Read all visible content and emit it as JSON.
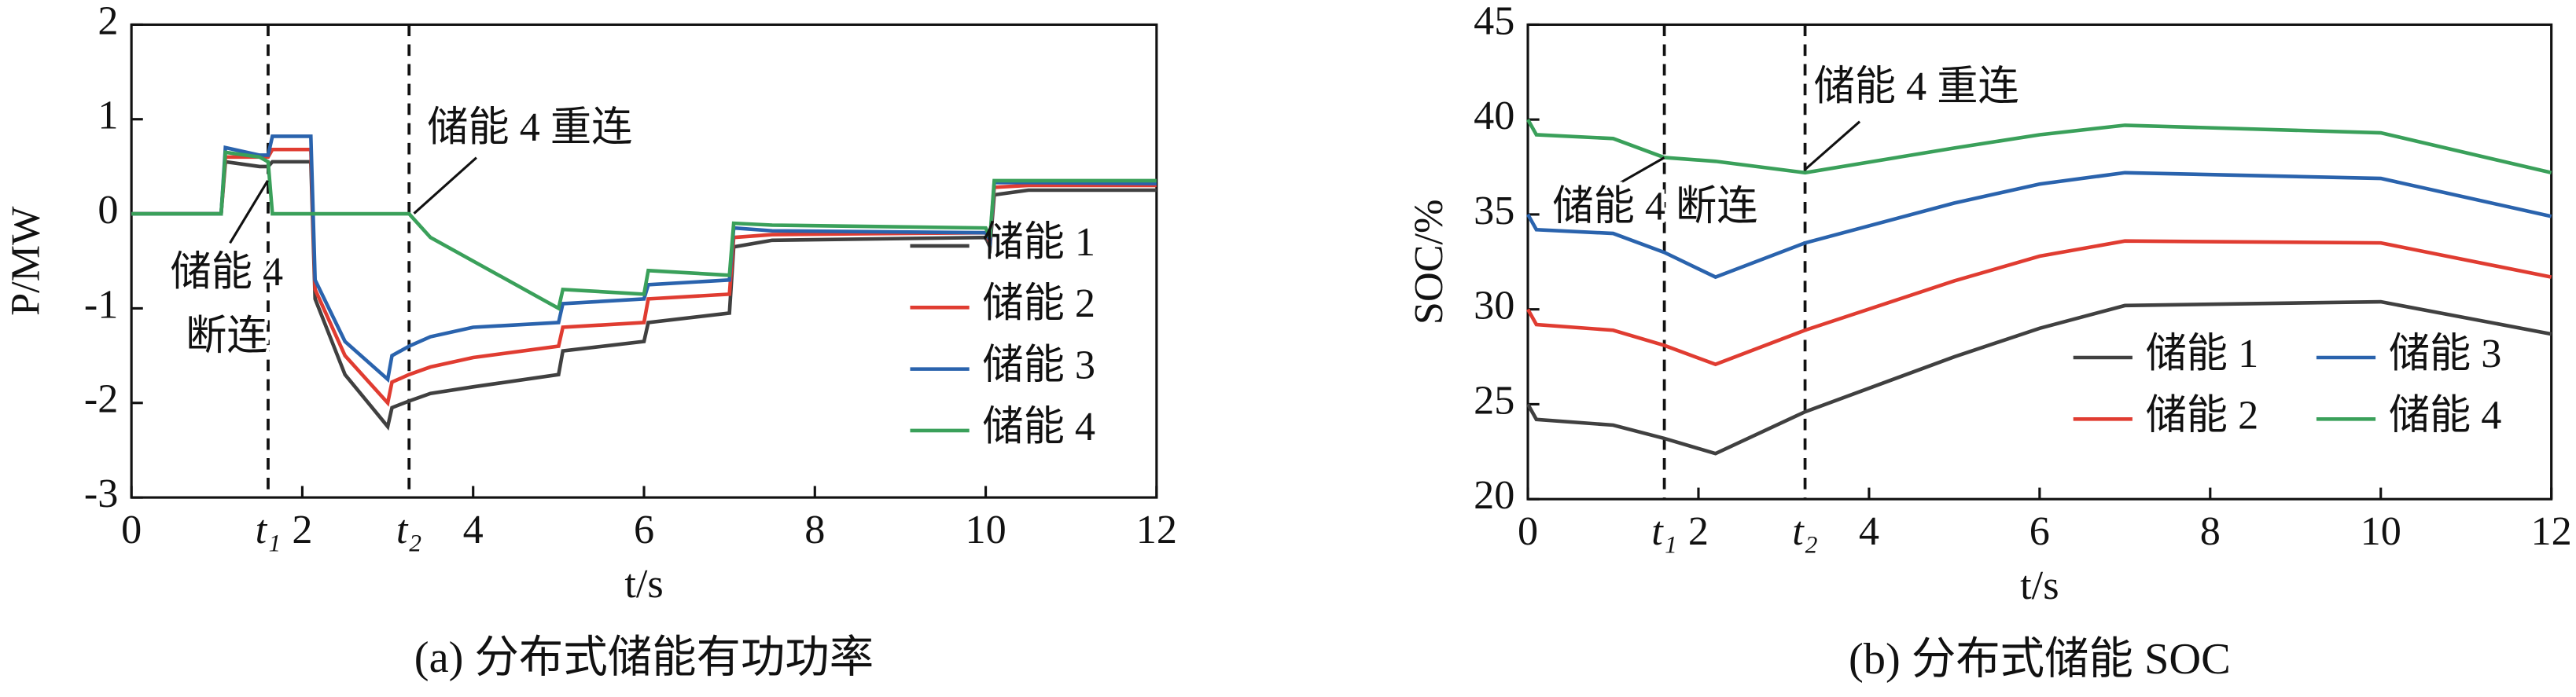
{
  "chart_data": [
    {
      "type": "line",
      "caption": "(a) 分布式储能有功功率",
      "xlabel": "t/s",
      "ylabel": "P/MW",
      "x": [
        0,
        1.05,
        1.1,
        1.5,
        1.6,
        1.65,
        2.1,
        2.15,
        2.5,
        3.0,
        3.05,
        3.25,
        3.5,
        4,
        5,
        5.05,
        6,
        6.05,
        7,
        7.05,
        7.5,
        10,
        10.05,
        10.1,
        10.5,
        12
      ],
      "series": [
        {
          "name": "储能 1",
          "color": "#404040",
          "values": [
            0,
            0,
            0.55,
            0.5,
            0.5,
            0.55,
            0.55,
            -0.9,
            -1.7,
            -2.25,
            -2.05,
            -1.98,
            -1.9,
            -1.83,
            -1.7,
            -1.45,
            -1.35,
            -1.15,
            -1.05,
            -0.35,
            -0.28,
            -0.25,
            -0.35,
            0.2,
            0.25,
            0.25
          ]
        },
        {
          "name": "储能 2",
          "color": "#e03c31",
          "values": [
            0,
            0,
            0.6,
            0.6,
            0.6,
            0.68,
            0.68,
            -0.8,
            -1.5,
            -2.0,
            -1.78,
            -1.7,
            -1.62,
            -1.52,
            -1.4,
            -1.2,
            -1.15,
            -0.9,
            -0.85,
            -0.25,
            -0.22,
            -0.2,
            -0.3,
            0.28,
            0.3,
            0.3
          ]
        },
        {
          "name": "储能 3",
          "color": "#2a63ad",
          "values": [
            0,
            0,
            0.7,
            0.62,
            0.62,
            0.82,
            0.82,
            -0.7,
            -1.35,
            -1.75,
            -1.5,
            -1.4,
            -1.3,
            -1.2,
            -1.15,
            -0.95,
            -0.9,
            -0.75,
            -0.7,
            -0.15,
            -0.18,
            -0.2,
            -0.28,
            0.33,
            0.33,
            0.32
          ]
        },
        {
          "name": "储能 4",
          "color": "#3aa05a",
          "values": [
            0,
            0,
            0.65,
            0.6,
            0.55,
            0,
            0,
            0,
            0,
            0,
            0,
            0,
            -0.25,
            -0.5,
            -1.0,
            -0.8,
            -0.85,
            -0.6,
            -0.65,
            -0.1,
            -0.12,
            -0.15,
            -0.25,
            0.35,
            0.35,
            0.35
          ]
        }
      ],
      "xlim": [
        0,
        12
      ],
      "ylim": [
        -3,
        2
      ],
      "xticks": [
        0,
        {
          "value": 1.6,
          "label": "t₁"
        },
        2,
        {
          "value": 3.25,
          "label": "t₂"
        },
        4,
        6,
        8,
        10,
        12
      ],
      "yticks": [
        -3,
        -2,
        -1,
        0,
        1,
        2
      ],
      "legend": "lower right",
      "legend_ncol": 1,
      "annotations": [
        "储能 4 重连",
        "储能 4",
        "断连"
      ]
    },
    {
      "type": "line",
      "caption": "(b) 分布式储能 SOC",
      "xlabel": "t/s",
      "ylabel": "SOC/%",
      "x": [
        0,
        0.1,
        1,
        1.6,
        2.2,
        3.25,
        5,
        6,
        7,
        10,
        12
      ],
      "series": [
        {
          "name": "储能 1",
          "color": "#404040",
          "values": [
            25,
            24.2,
            23.9,
            23.2,
            22.4,
            24.6,
            27.5,
            29.0,
            30.2,
            30.4,
            28.7
          ]
        },
        {
          "name": "储能 2",
          "color": "#e03c31",
          "values": [
            30,
            29.2,
            28.9,
            28.1,
            27.1,
            28.9,
            31.5,
            32.8,
            33.6,
            33.5,
            31.7
          ]
        },
        {
          "name": "储能 3",
          "color": "#2a63ad",
          "values": [
            35,
            34.2,
            34,
            33,
            31.7,
            33.5,
            35.6,
            36.6,
            37.2,
            36.9,
            34.9
          ]
        },
        {
          "name": "储能 4",
          "color": "#3aa05a",
          "values": [
            40,
            39.2,
            39,
            38,
            37.8,
            37.2,
            38.5,
            39.2,
            39.7,
            39.3,
            37.2
          ]
        }
      ],
      "xlim": [
        0,
        12
      ],
      "ylim": [
        20,
        45
      ],
      "xticks": [
        0,
        {
          "value": 1.6,
          "label": "t₁"
        },
        2,
        {
          "value": 3.25,
          "label": "t₂"
        },
        4,
        6,
        8,
        10,
        12
      ],
      "yticks": [
        20,
        25,
        30,
        35,
        40,
        45
      ],
      "legend": "lower right",
      "legend_ncol": 2,
      "annotations": [
        "储能 4 重连",
        "储能 4 断连"
      ]
    }
  ]
}
